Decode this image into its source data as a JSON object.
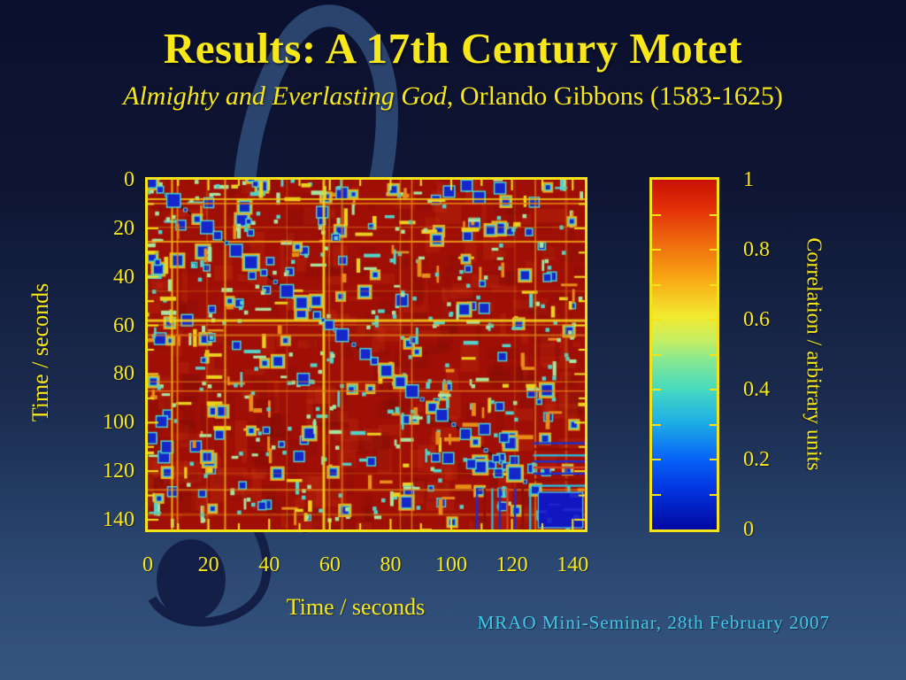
{
  "slide": {
    "title": "Results: A 17th Century Motet",
    "subtitle_italic": "Almighty and Everlasting God",
    "subtitle_rest": ", Orlando Gibbons (1583-1625)",
    "footer": "MRAO Mini-Seminar, 28th February 2007"
  },
  "colors": {
    "bg_top": "#0a0f2d",
    "bg_bottom": "#35547f",
    "accent_yellow": "#f8e81a",
    "footer_cyan": "#41c8e9",
    "plot_border": "#f5e318",
    "watermark_light": "#2e4a76",
    "watermark_dark": "#141f48",
    "heat_palette": {
      "base": "#a00f06",
      "dark_red": "#6e0a04",
      "light_red": "#d23b12",
      "blue_core": "#1527cb",
      "cyan": "#52d2c8",
      "pale_green": "#a8e4a0",
      "yellow": "#ecd11e",
      "orange": "#e88d18",
      "orange_ring": "#e8b21c"
    }
  },
  "chart_data": {
    "type": "heatmap",
    "title": "",
    "xlabel": "Time / seconds",
    "ylabel": "Time / seconds",
    "x_ticks": [
      0,
      20,
      40,
      60,
      80,
      100,
      120,
      140
    ],
    "y_ticks": [
      0,
      20,
      40,
      60,
      80,
      100,
      120,
      140
    ],
    "minor_tick_step": 10,
    "xlim": [
      0,
      144
    ],
    "ylim": [
      0,
      144
    ],
    "y_axis_inverted": true,
    "grid": false,
    "colormap": "jet",
    "colormap_stops": [
      [
        1.0,
        "#c81104"
      ],
      [
        0.92,
        "#e22f07"
      ],
      [
        0.82,
        "#ef6a0e"
      ],
      [
        0.72,
        "#f9a614"
      ],
      [
        0.61,
        "#f2ea2f"
      ],
      [
        0.54,
        "#c4ee63"
      ],
      [
        0.49,
        "#8ce98e"
      ],
      [
        0.4,
        "#46d9c0"
      ],
      [
        0.31,
        "#1fb0e4"
      ],
      [
        0.2,
        "#0762f7"
      ],
      [
        0.12,
        "#0337e2"
      ],
      [
        0.0,
        "#0108a0"
      ]
    ],
    "colorbar": {
      "label": "Correlation / arbitrary units",
      "ticks": [
        "0",
        "0.2",
        "0.4",
        "0.6",
        "0.8",
        "1"
      ],
      "tick_values": [
        0,
        0.2,
        0.4,
        0.6,
        0.8,
        1
      ],
      "minor_tick_step": 0.1,
      "range": [
        0,
        1
      ],
      "position": "right"
    },
    "base_value": 0.92,
    "description": "Self-similarity correlation matrix of the motet audio: predominantly high correlation (~0.9, red) with scattered low-correlation events (blue/cyan/yellow blobs), a main diagonal of exact self-matches, thin high-intensity stripes, and a low-correlation (blue) block covering roughly the final 15 seconds.",
    "coarse_matrix": {
      "block_edges_seconds": [
        0,
        18,
        36,
        54,
        72,
        90,
        108,
        126,
        144
      ],
      "values": [
        [
          0.88,
          0.9,
          0.91,
          0.92,
          0.9,
          0.91,
          0.9,
          0.89
        ],
        [
          0.9,
          0.87,
          0.9,
          0.91,
          0.9,
          0.89,
          0.9,
          0.9
        ],
        [
          0.91,
          0.9,
          0.88,
          0.9,
          0.91,
          0.9,
          0.89,
          0.91
        ],
        [
          0.92,
          0.91,
          0.9,
          0.89,
          0.9,
          0.91,
          0.9,
          0.9
        ],
        [
          0.9,
          0.9,
          0.91,
          0.9,
          0.88,
          0.9,
          0.91,
          0.9
        ],
        [
          0.91,
          0.89,
          0.9,
          0.91,
          0.9,
          0.88,
          0.9,
          0.88
        ],
        [
          0.9,
          0.9,
          0.89,
          0.9,
          0.91,
          0.9,
          0.87,
          0.75
        ],
        [
          0.89,
          0.9,
          0.91,
          0.9,
          0.9,
          0.88,
          0.75,
          0.35
        ]
      ]
    },
    "features": {
      "seed": 20070228,
      "diagonal": {
        "value": 0.1,
        "note": "thin dark self-match diagonal with blue/cyan blobs"
      },
      "corner_block": {
        "x": [
          128.5,
          143.5
        ],
        "y": [
          128.5,
          143.5
        ],
        "value": 0.12,
        "color": "#1216c0",
        "edge": "#55d8e8"
      },
      "stripe_band": {
        "span_from": 127,
        "positions": [
          108.5,
          111,
          113.5,
          116,
          118.5,
          121,
          123.5,
          126
        ],
        "colors": [
          "#1b2fd0",
          "#8d0e05",
          "#2bb9dd",
          "#1b2fd0",
          "#d8431c",
          "#1b2fd0",
          "#8d0e05",
          "#2bb9dd"
        ]
      },
      "accent_lines": [
        {
          "u": 8.0,
          "w": 2.0,
          "color": "#f3c60f"
        },
        {
          "u": 9.8,
          "w": 2.0,
          "color": "#e87d10"
        },
        {
          "u": 25.5,
          "w": 2.0,
          "color": "#efa51a"
        },
        {
          "u": 58.0,
          "w": 3.0,
          "color": "#f5d31d"
        },
        {
          "u": 87.0,
          "w": 1.5,
          "color": "#e87d10"
        }
      ]
    }
  }
}
